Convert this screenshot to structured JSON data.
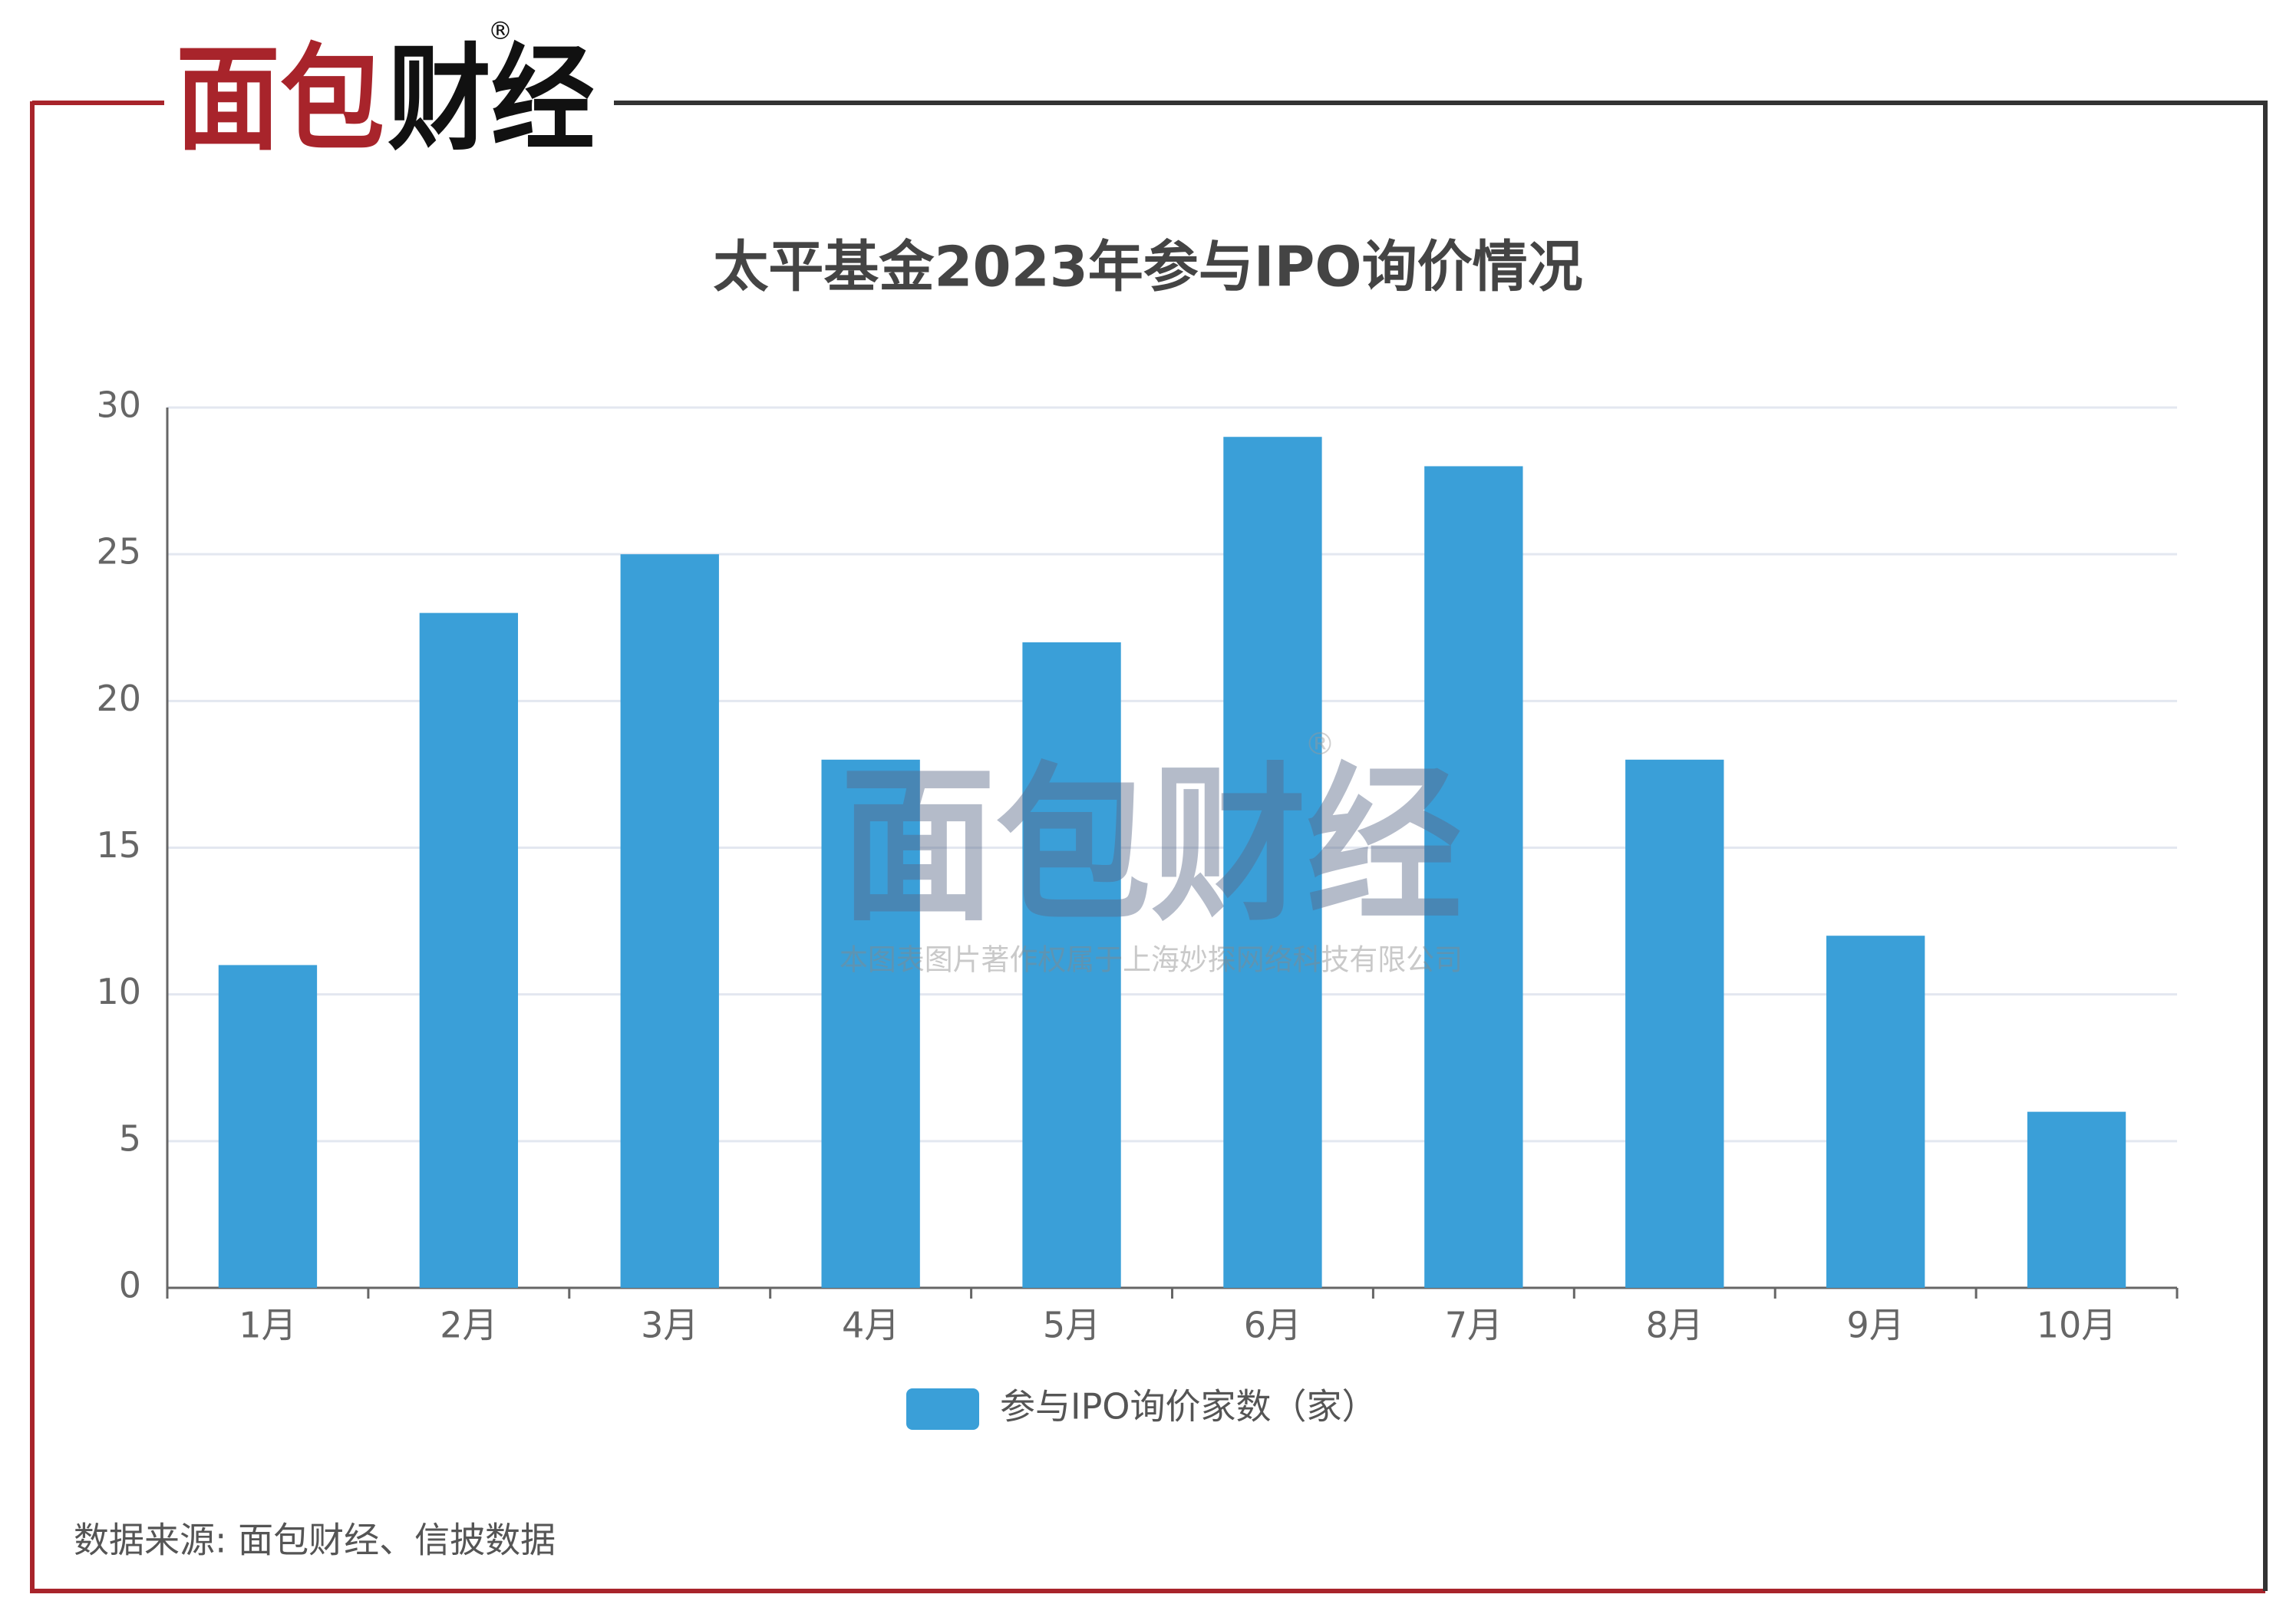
{
  "logo": {
    "part1": "面包",
    "part2": "财经",
    "mark": "®"
  },
  "chart_data": {
    "type": "bar",
    "title": "太平基金2023年参与IPO询价情况",
    "categories": [
      "1月",
      "2月",
      "3月",
      "4月",
      "5月",
      "6月",
      "7月",
      "8月",
      "9月",
      "10月"
    ],
    "series": [
      {
        "name": "参与IPO询价家数（家）",
        "color": "#3a9fd8",
        "values": [
          11,
          23,
          25,
          18,
          22,
          29,
          28,
          18,
          12,
          6
        ]
      }
    ],
    "ylim": [
      0,
      30
    ],
    "yticks": [
      0,
      5,
      10,
      15,
      20,
      25,
      30
    ],
    "grid": true,
    "legend": "bottom"
  },
  "watermark": {
    "logo": "面包财经",
    "mark": "®",
    "text": "本图表图片著作权属于上海妙探网络科技有限公司"
  },
  "source": "数据来源: 面包财经、信披数据"
}
